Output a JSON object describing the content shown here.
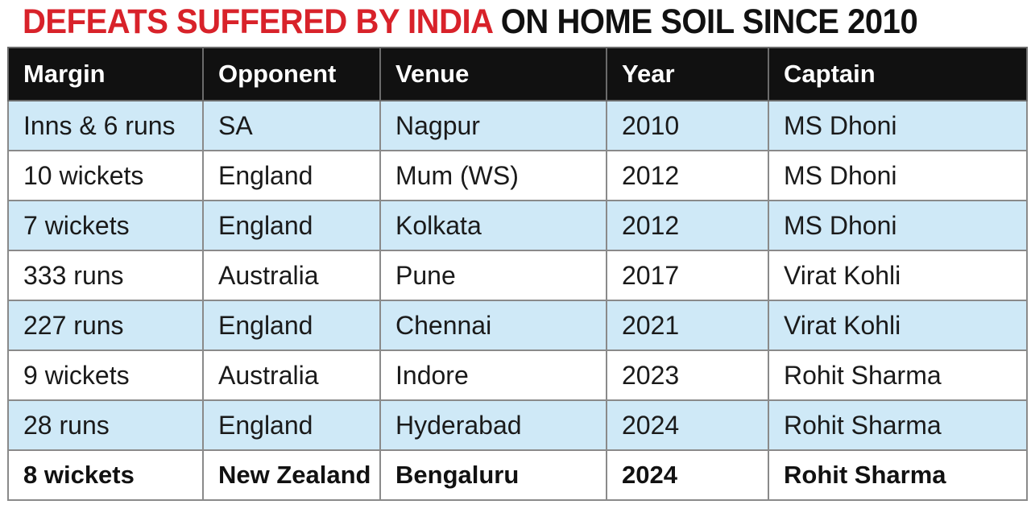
{
  "title": {
    "highlight": "DEFEATS SUFFERED BY INDIA",
    "rest": "ON HOME SOIL SINCE 2010"
  },
  "colors": {
    "highlight": "#d8222a",
    "header_bg": "#111111",
    "row_alt": "#cfe9f7"
  },
  "table": {
    "headers": [
      "Margin",
      "Opponent",
      "Venue",
      "Year",
      "Captain"
    ],
    "rows": [
      [
        "Inns & 6 runs",
        "SA",
        "Nagpur",
        "2010",
        "MS Dhoni"
      ],
      [
        "10 wickets",
        "England",
        "Mum (WS)",
        "2012",
        "MS Dhoni"
      ],
      [
        "7 wickets",
        "England",
        "Kolkata",
        "2012",
        "MS Dhoni"
      ],
      [
        "333 runs",
        "Australia",
        "Pune",
        "2017",
        "Virat Kohli"
      ],
      [
        "227 runs",
        "England",
        "Chennai",
        "2021",
        "Virat Kohli"
      ],
      [
        "9 wickets",
        "Australia",
        "Indore",
        "2023",
        "Rohit Sharma"
      ],
      [
        "28 runs",
        "England",
        "Hyderabad",
        "2024",
        "Rohit Sharma"
      ],
      [
        "8 wickets",
        "New Zealand",
        "Bengaluru",
        "2024",
        "Rohit Sharma"
      ]
    ]
  }
}
